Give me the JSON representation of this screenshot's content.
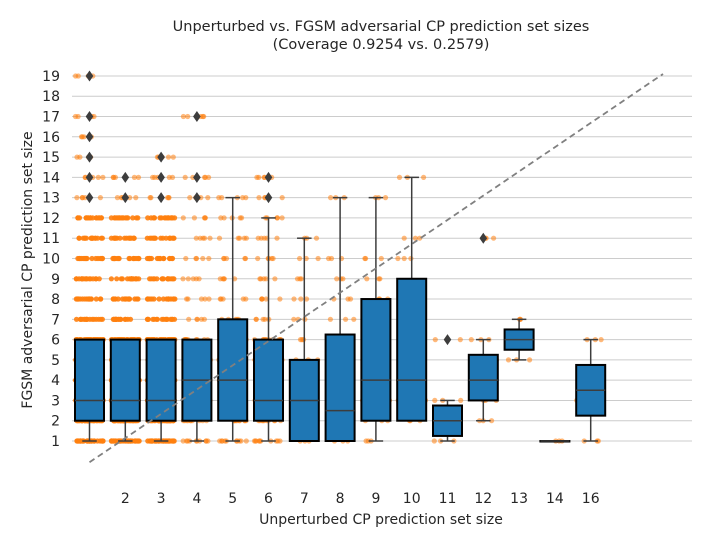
{
  "chart_data": {
    "type": "box",
    "title": "Unperturbed vs. FGSM adversarial CP prediction set sizes",
    "subtitle": "(Coverage 0.9254 vs. 0.2579)",
    "xlabel": "Unperturbed CP prediction set size",
    "ylabel": "FGSM adversarial CP prediction set size",
    "categories": [
      "1",
      "2",
      "3",
      "4",
      "5",
      "6",
      "7",
      "8",
      "9",
      "10",
      "11",
      "12",
      "13",
      "14",
      "16"
    ],
    "x_tick_labels": [
      "2",
      "3",
      "4",
      "5",
      "6",
      "7",
      "8",
      "9",
      "10",
      "11",
      "12",
      "13",
      "14",
      "16"
    ],
    "y_ticks": [
      1,
      2,
      3,
      4,
      5,
      6,
      7,
      8,
      9,
      10,
      11,
      12,
      13,
      14,
      15,
      16,
      17,
      18,
      19
    ],
    "ylim": [
      -0.9,
      19.6
    ],
    "grid": "horizontal",
    "diagonal_reference": "dashed y = x",
    "box_color": "#1f77b4",
    "point_color": "#ff7f0e",
    "boxes": [
      {
        "category": "1",
        "q1": 2,
        "median": 3,
        "q3": 6,
        "whisker_low": 1,
        "whisker_high": 6,
        "outliers": [
          13,
          14,
          15,
          16,
          17,
          19
        ]
      },
      {
        "category": "2",
        "q1": 2,
        "median": 3,
        "q3": 6,
        "whisker_low": 1,
        "whisker_high": 6,
        "outliers": [
          13,
          14
        ]
      },
      {
        "category": "3",
        "q1": 2,
        "median": 3,
        "q3": 6,
        "whisker_low": 1,
        "whisker_high": 6,
        "outliers": [
          13,
          14,
          15
        ]
      },
      {
        "category": "4",
        "q1": 2,
        "median": 4,
        "q3": 6,
        "whisker_low": 1,
        "whisker_high": 6,
        "outliers": [
          13,
          14,
          17
        ]
      },
      {
        "category": "5",
        "q1": 2,
        "median": 4,
        "q3": 7,
        "whisker_low": 1,
        "whisker_high": 13,
        "outliers": []
      },
      {
        "category": "6",
        "q1": 2,
        "median": 3,
        "q3": 6,
        "whisker_low": 1,
        "whisker_high": 12,
        "outliers": [
          13,
          14
        ]
      },
      {
        "category": "7",
        "q1": 1,
        "median": 3,
        "q3": 5,
        "whisker_low": 1,
        "whisker_high": 11,
        "outliers": []
      },
      {
        "category": "8",
        "q1": 1,
        "median": 2.5,
        "q3": 6.25,
        "whisker_low": 1,
        "whisker_high": 13,
        "outliers": []
      },
      {
        "category": "9",
        "q1": 2,
        "median": 4,
        "q3": 8,
        "whisker_low": 1,
        "whisker_high": 13,
        "outliers": []
      },
      {
        "category": "10",
        "q1": 2,
        "median": 4,
        "q3": 9,
        "whisker_low": 2,
        "whisker_high": 14,
        "outliers": []
      },
      {
        "category": "11",
        "q1": 1.25,
        "median": 2,
        "q3": 2.75,
        "whisker_low": 1,
        "whisker_high": 3,
        "outliers": [
          6
        ]
      },
      {
        "category": "12",
        "q1": 3,
        "median": 4,
        "q3": 5.25,
        "whisker_low": 2,
        "whisker_high": 6,
        "outliers": [
          11
        ]
      },
      {
        "category": "13",
        "q1": 5.5,
        "median": 6,
        "q3": 6.5,
        "whisker_low": 5,
        "whisker_high": 7,
        "outliers": []
      },
      {
        "category": "14",
        "q1": 1,
        "median": 1,
        "q3": 1,
        "whisker_low": 1,
        "whisker_high": 1,
        "outliers": []
      },
      {
        "category": "16",
        "q1": 2.25,
        "median": 3.5,
        "q3": 4.75,
        "whisker_low": 1,
        "whisker_high": 6,
        "outliers": []
      }
    ],
    "points": [
      {
        "category": "1",
        "y": [
          1,
          2,
          3,
          4,
          5,
          6,
          7,
          8,
          9,
          10,
          11,
          12,
          13,
          14,
          15,
          16,
          17,
          19
        ],
        "density": "dense"
      },
      {
        "category": "2",
        "y": [
          1,
          2,
          3,
          4,
          5,
          6,
          7,
          8,
          9,
          10,
          11,
          12,
          13,
          14
        ],
        "density": "dense"
      },
      {
        "category": "3",
        "y": [
          1,
          2,
          3,
          4,
          5,
          6,
          7,
          8,
          9,
          10,
          11,
          12,
          13,
          14,
          15
        ],
        "density": "dense"
      },
      {
        "category": "4",
        "y": [
          1,
          2,
          3,
          4,
          5,
          6,
          7,
          8,
          9,
          10,
          11,
          12,
          13,
          14,
          17
        ],
        "density": "medium"
      },
      {
        "category": "5",
        "y": [
          1,
          2,
          3,
          4,
          5,
          6,
          7,
          8,
          9,
          10,
          11,
          12,
          13
        ],
        "density": "medium"
      },
      {
        "category": "6",
        "y": [
          1,
          2,
          3,
          4,
          5,
          6,
          7,
          8,
          9,
          10,
          11,
          12,
          13,
          14
        ],
        "density": "medium"
      },
      {
        "category": "7",
        "y": [
          1,
          2,
          3,
          4,
          5,
          6,
          7,
          8,
          9,
          10,
          11
        ],
        "density": "sparse"
      },
      {
        "category": "8",
        "y": [
          1,
          2,
          3,
          4,
          5,
          6,
          7,
          8,
          9,
          10,
          13
        ],
        "density": "sparse"
      },
      {
        "category": "9",
        "y": [
          1,
          2,
          3,
          4,
          5,
          7,
          8,
          9,
          10,
          13
        ],
        "density": "sparse"
      },
      {
        "category": "10",
        "y": [
          2,
          3,
          4,
          5,
          7,
          8,
          10,
          11,
          14
        ],
        "density": "sparse"
      },
      {
        "category": "11",
        "y": [
          1,
          2,
          3,
          6
        ],
        "density": "sparse"
      },
      {
        "category": "12",
        "y": [
          2,
          3,
          4,
          5,
          6,
          11
        ],
        "density": "sparse"
      },
      {
        "category": "13",
        "y": [
          5,
          6,
          7
        ],
        "density": "sparse"
      },
      {
        "category": "14",
        "y": [
          1
        ],
        "density": "sparse"
      },
      {
        "category": "16",
        "y": [
          1,
          3,
          6
        ],
        "density": "sparse"
      }
    ]
  }
}
